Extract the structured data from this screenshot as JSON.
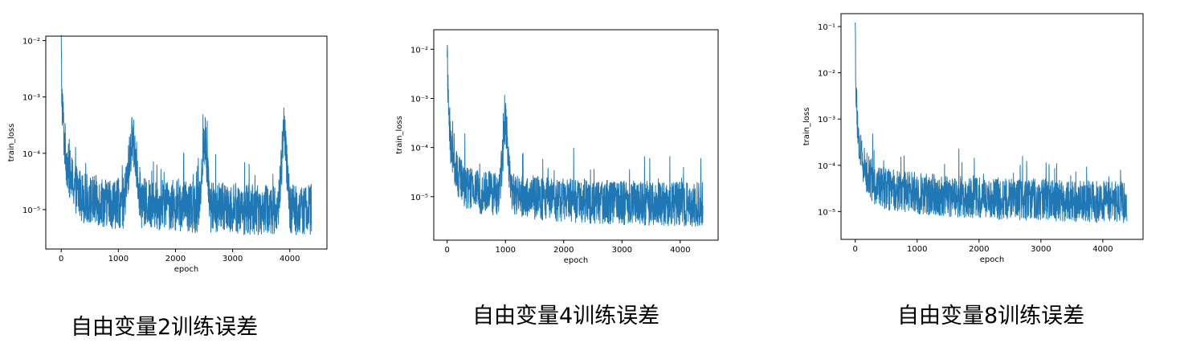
{
  "captions": [
    "自由变量2训练误差",
    "自由变量4训练误差",
    "自由变量8训练误差"
  ],
  "chart_data": [
    {
      "type": "line",
      "xlabel": "epoch",
      "ylabel": "train_loss",
      "yscale": "log",
      "xlim": [
        -270,
        4650
      ],
      "ylim": [
        2e-06,
        0.012
      ],
      "xticks": [
        0,
        1000,
        2000,
        3000,
        4000
      ],
      "yticks": [
        1e-05,
        0.0001,
        0.001,
        0.01
      ],
      "ytick_labels": [
        "10⁻⁵",
        "10⁻⁴",
        "10⁻³",
        "10⁻²"
      ],
      "grid": false,
      "color": "#1f77b4",
      "series": [
        {
          "x": [
            0,
            10,
            20,
            30,
            40,
            50,
            60,
            80,
            100,
            130,
            160,
            200,
            250,
            300,
            400,
            500,
            700,
            900,
            1100,
            1250,
            1400,
            1600,
            1800,
            2000,
            2200,
            2400,
            2520,
            2600,
            2800,
            3000,
            3200,
            3400,
            3600,
            3800,
            3900,
            4000,
            4200,
            4380
          ],
          "y": [
            0.008,
            0.0012,
            0.0007,
            0.0005,
            0.0003,
            0.0002,
            0.00015,
            0.0001,
            7e-05,
            5e-05,
            4e-05,
            3e-05,
            2.5e-05,
            2e-05,
            1.6e-05,
            1.5e-05,
            1.4e-05,
            1.3e-05,
            1.3e-05,
            0.00021,
            1.3e-05,
            1.2e-05,
            1.2e-05,
            1.2e-05,
            1.1e-05,
            1.1e-05,
            0.00019,
            1.1e-05,
            1.1e-05,
            1.1e-05,
            1e-05,
            1e-05,
            1e-05,
            1e-05,
            0.00028,
            1e-05,
            1e-05,
            1e-05
          ]
        }
      ]
    },
    {
      "type": "line",
      "xlabel": "epoch",
      "ylabel": "train_loss",
      "yscale": "log",
      "xlim": [
        -230,
        4650
      ],
      "ylim": [
        1.3e-06,
        0.025
      ],
      "xticks": [
        0,
        1000,
        2000,
        3000,
        4000
      ],
      "yticks": [
        1e-05,
        0.0001,
        0.001,
        0.01
      ],
      "ytick_labels": [
        "10⁻⁵",
        "10⁻⁴",
        "10⁻³",
        "10⁻²"
      ],
      "grid": false,
      "color": "#1f77b4",
      "series": [
        {
          "x": [
            0,
            10,
            20,
            30,
            40,
            50,
            60,
            80,
            100,
            130,
            160,
            200,
            250,
            300,
            400,
            500,
            700,
            900,
            1000,
            1100,
            1300,
            1500,
            1700,
            1900,
            2100,
            2300,
            2500,
            2700,
            2900,
            3100,
            3300,
            3500,
            3700,
            3900,
            4100,
            4300,
            4390
          ],
          "y": [
            0.016,
            0.0015,
            0.0008,
            0.0005,
            0.0003,
            0.00018,
            0.00012,
            8e-05,
            6e-05,
            4e-05,
            3e-05,
            2.5e-05,
            2e-05,
            1.7e-05,
            1.4e-05,
            1.3e-05,
            1.2e-05,
            1.1e-05,
            0.00042,
            1.1e-05,
            1e-05,
            9.5e-06,
            9e-06,
            8.8e-06,
            8.5e-06,
            8.2e-06,
            8e-06,
            7.8e-06,
            7.6e-06,
            7.5e-06,
            7.4e-06,
            7.3e-06,
            7.2e-06,
            7.1e-06,
            7e-06,
            7e-06,
            7e-06
          ]
        }
      ]
    },
    {
      "type": "line",
      "xlabel": "epoch",
      "ylabel": "train_loss",
      "yscale": "log",
      "xlim": [
        -230,
        4650
      ],
      "ylim": [
        2.5e-06,
        0.19
      ],
      "xticks": [
        0,
        1000,
        2000,
        3000,
        4000
      ],
      "yticks": [
        1e-05,
        0.0001,
        0.001,
        0.01,
        0.1
      ],
      "ytick_labels": [
        "10⁻⁵",
        "10⁻⁴",
        "10⁻³",
        "10⁻²",
        "10⁻¹"
      ],
      "grid": false,
      "color": "#1f77b4",
      "series": [
        {
          "x": [
            0,
            10,
            20,
            30,
            40,
            50,
            60,
            80,
            100,
            130,
            160,
            200,
            250,
            300,
            400,
            500,
            700,
            900,
            1100,
            1300,
            1500,
            1700,
            1900,
            2100,
            2300,
            2500,
            2700,
            2900,
            3100,
            3300,
            3500,
            3700,
            3900,
            4100,
            4300,
            4390
          ],
          "y": [
            0.13,
            0.004,
            0.002,
            0.001,
            0.0007,
            0.0005,
            0.0003,
            0.0002,
            0.00015,
            0.0001,
            8e-05,
            6e-05,
            5e-05,
            4e-05,
            3.5e-05,
            3e-05,
            2.8e-05,
            2.6e-05,
            2.4e-05,
            2.3e-05,
            2.2e-05,
            2.1e-05,
            2e-05,
            2e-05,
            1.9e-05,
            1.9e-05,
            1.8e-05,
            1.8e-05,
            1.8e-05,
            1.7e-05,
            1.7e-05,
            1.7e-05,
            1.6e-05,
            1.6e-05,
            1.6e-05,
            1.6e-05
          ]
        }
      ]
    }
  ]
}
